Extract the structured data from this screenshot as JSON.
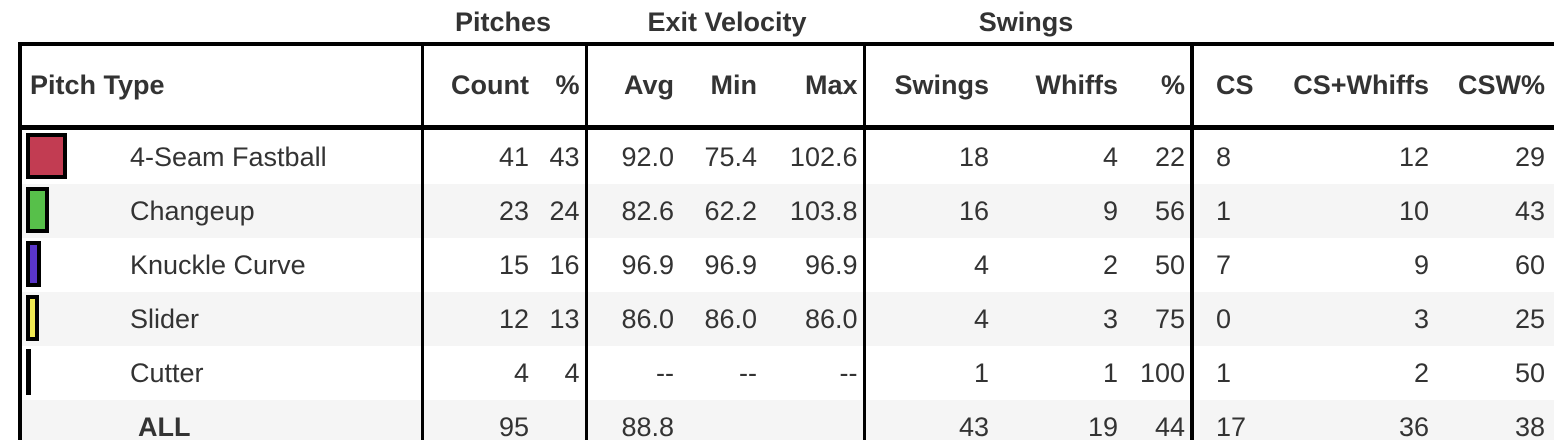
{
  "group_headers": {
    "pitches": "Pitches",
    "exit_velocity": "Exit Velocity",
    "swings": "Swings"
  },
  "table": {
    "columns": {
      "pitch_type": "Pitch Type",
      "count": "Count",
      "count_pct": "%",
      "avg": "Avg",
      "min": "Min",
      "max": "Max",
      "swings": "Swings",
      "whiffs": "Whiffs",
      "swing_pct": "%",
      "cs": "CS",
      "cs_whiffs": "CS+Whiffs",
      "csw_pct": "CSW%"
    },
    "rows": [
      {
        "name": "4-Seam Fastball",
        "swatch_color": "#c23c52",
        "swatch_width": 41,
        "count": "41",
        "count_pct": "43",
        "avg": "92.0",
        "min": "75.4",
        "max": "102.6",
        "swings": "18",
        "whiffs": "4",
        "swing_pct": "22",
        "cs": "8",
        "cs_whiffs": "12",
        "csw_pct": "29"
      },
      {
        "name": "Changeup",
        "swatch_color": "#57c04a",
        "swatch_width": 23,
        "count": "23",
        "count_pct": "24",
        "avg": "82.6",
        "min": "62.2",
        "max": "103.8",
        "swings": "16",
        "whiffs": "9",
        "swing_pct": "56",
        "cs": "1",
        "cs_whiffs": "10",
        "csw_pct": "43"
      },
      {
        "name": "Knuckle Curve",
        "swatch_color": "#5a36c9",
        "swatch_width": 15,
        "count": "15",
        "count_pct": "16",
        "avg": "96.9",
        "min": "96.9",
        "max": "96.9",
        "swings": "4",
        "whiffs": "2",
        "swing_pct": "50",
        "cs": "7",
        "cs_whiffs": "9",
        "csw_pct": "60"
      },
      {
        "name": "Slider",
        "swatch_color": "#f0e952",
        "swatch_width": 13,
        "count": "12",
        "count_pct": "13",
        "avg": "86.0",
        "min": "86.0",
        "max": "86.0",
        "swings": "4",
        "whiffs": "3",
        "swing_pct": "75",
        "cs": "0",
        "cs_whiffs": "3",
        "csw_pct": "25"
      },
      {
        "name": "Cutter",
        "swatch_color": "#000000",
        "swatch_width": 5,
        "count": "4",
        "count_pct": "4",
        "avg": "--",
        "min": "--",
        "max": "--",
        "swings": "1",
        "whiffs": "1",
        "swing_pct": "100",
        "cs": "1",
        "cs_whiffs": "2",
        "csw_pct": "50"
      }
    ],
    "total": {
      "name": "ALL",
      "count": "95",
      "count_pct": "",
      "avg": "88.8",
      "min": "",
      "max": "",
      "swings": "43",
      "whiffs": "19",
      "swing_pct": "44",
      "cs": "17",
      "cs_whiffs": "36",
      "csw_pct": "38"
    }
  },
  "colors": {
    "border": "#000000",
    "text": "#333333",
    "row_alt_background": "#f5f5f5"
  }
}
